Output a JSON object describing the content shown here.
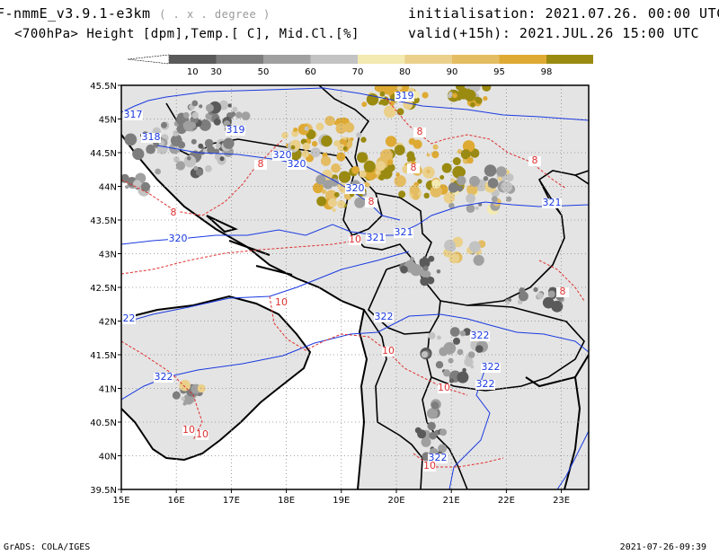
{
  "header": {
    "model": "F-nmmE_v3.9.1-e3km",
    "units_note": "( . x . degree )",
    "subtitle": "<700hPa> Height [dpm],Temp.[ C], Mid.Cl.[%]",
    "init_label": "initialisation:",
    "init_value": "2021.07.26.  00:00 UTC",
    "valid_label": "valid(+15h):",
    "valid_value": "2021.JUL.26 15:00 UTC"
  },
  "colorbar": {
    "levels": [
      "10",
      "30",
      "50",
      "60",
      "70",
      "80",
      "90",
      "95",
      "98"
    ],
    "colors": [
      "#5a5a5a",
      "#7d7d7d",
      "#a0a0a0",
      "#c3c3c3",
      "#f2eab0",
      "#ead08a",
      "#e4bc62",
      "#deaa33",
      "#9a8a10"
    ]
  },
  "map": {
    "lat_labels": [
      "45.5N",
      "45N",
      "44.5N",
      "44N",
      "43.5N",
      "43N",
      "42.5N",
      "42N",
      "41.5N",
      "41N",
      "40.5N",
      "40N",
      "39.5N"
    ],
    "lon_labels": [
      "15E",
      "16E",
      "17E",
      "18E",
      "19E",
      "20E",
      "21E",
      "22E",
      "23E"
    ],
    "height_contours": [
      "317",
      "318",
      "319",
      "319",
      "320",
      "320",
      "320",
      "320",
      "321",
      "321",
      "321",
      "322",
      "322",
      "322",
      "322",
      "322",
      "322",
      "322"
    ],
    "temp_contours": [
      "8",
      "8",
      "8",
      "8",
      "8",
      "8",
      "8",
      "10",
      "10",
      "10",
      "10",
      "10",
      "10",
      "10"
    ]
  },
  "footer": {
    "left": "GrADS: COLA/IGES",
    "right": "2021-07-26-09:39"
  }
}
